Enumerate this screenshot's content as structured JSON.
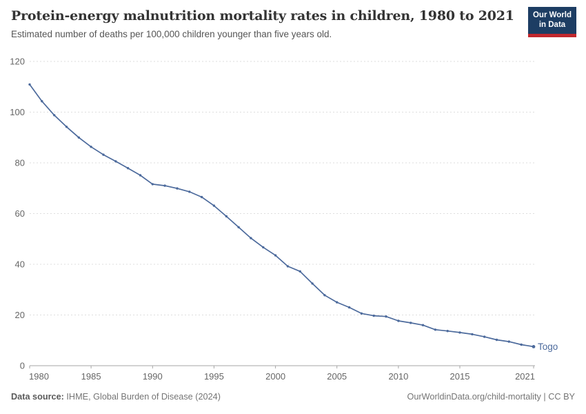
{
  "header": {
    "title": "Protein-energy malnutrition mortality rates in children, 1980 to 2021",
    "subtitle": "Estimated number of deaths per 100,000 children younger than five years old.",
    "logo": {
      "line1": "Our World",
      "line2": "in Data"
    }
  },
  "chart_data": {
    "type": "line",
    "title": "Protein-energy malnutrition mortality rates in children, 1980 to 2021",
    "subtitle": "Estimated number of deaths per 100,000 children younger than five years old.",
    "xlabel": "",
    "ylabel": "",
    "xlim": [
      1980,
      2021
    ],
    "ylim": [
      0,
      120
    ],
    "x_ticks": [
      1980,
      1985,
      1990,
      1995,
      2000,
      2005,
      2010,
      2015,
      2021
    ],
    "y_ticks": [
      0,
      20,
      40,
      60,
      80,
      100,
      120
    ],
    "grid": "horizontal-dashed",
    "legend_position": "end-of-line-label",
    "years": [
      1980,
      1981,
      1982,
      1983,
      1984,
      1985,
      1986,
      1987,
      1988,
      1989,
      1990,
      1991,
      1992,
      1993,
      1994,
      1995,
      1996,
      1997,
      1998,
      1999,
      2000,
      2001,
      2002,
      2003,
      2004,
      2005,
      2006,
      2007,
      2008,
      2009,
      2010,
      2011,
      2012,
      2013,
      2014,
      2015,
      2016,
      2017,
      2018,
      2019,
      2020,
      2021
    ],
    "series": [
      {
        "name": "Togo",
        "color": "#4c6a9c",
        "values": [
          110.9,
          104.3,
          98.8,
          94.2,
          90.0,
          86.3,
          83.2,
          80.6,
          77.9,
          75.1,
          71.6,
          71.0,
          69.9,
          68.6,
          66.5,
          63.1,
          58.9,
          54.6,
          50.3,
          46.7,
          43.5,
          39.2,
          37.2,
          32.4,
          27.8,
          25.0,
          23.0,
          20.6,
          19.7,
          19.4,
          17.7,
          16.9,
          16.0,
          14.2,
          13.7,
          13.1,
          12.4,
          11.4,
          10.2,
          9.5,
          8.3,
          7.5
        ]
      }
    ]
  },
  "footer": {
    "source_label": "Data source:",
    "source_text": " IHME, Global Burden of Disease (2024)",
    "license_text": "OurWorldinData.org/child-mortality | CC BY"
  },
  "colors": {
    "line": "#4c6a9c",
    "grid": "#dddddd",
    "axis": "#a5a5a5",
    "tick_label": "#666666",
    "series_label": "#4c6a9c",
    "logo_bg": "#1d3d63",
    "logo_red": "#c1272d"
  }
}
